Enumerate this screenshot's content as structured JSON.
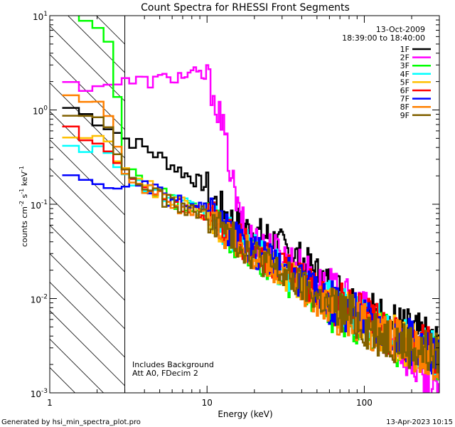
{
  "chart_data": {
    "type": "line",
    "title": "Count Spectra for RHESSI Front Segments",
    "xlabel": "Energy (keV)",
    "ylabel_parts": {
      "base": "counts cm",
      "exp1": "-2",
      "mid1": " s",
      "exp2": "-1",
      "mid2": " keV",
      "exp3": "-1"
    },
    "xscale": "log",
    "yscale": "log",
    "xlim": [
      1,
      300
    ],
    "ylim": [
      0.001,
      10
    ],
    "x_ticks": [
      {
        "value": 1,
        "label": "1"
      },
      {
        "value": 10,
        "label": "10"
      },
      {
        "value": 100,
        "label": "100"
      }
    ],
    "y_ticks": [
      {
        "value": 0.001,
        "base": "10",
        "exp": "-3"
      },
      {
        "value": 0.01,
        "base": "10",
        "exp": "-2"
      },
      {
        "value": 0.1,
        "base": "10",
        "exp": "-1"
      },
      {
        "value": 1,
        "base": "10",
        "exp": "0"
      },
      {
        "value": 10,
        "base": "10",
        "exp": "1"
      }
    ],
    "date": "13-Oct-2009",
    "time_range": "18:39:00 to 18:40:00",
    "excluded_region_max_keV": 3,
    "notes": [
      "Includes Background",
      "Att A0, FDecim 2"
    ],
    "legend_position": "top-right",
    "series": [
      {
        "name": "1F",
        "color": "#000000",
        "points": [
          [
            1.2,
            1.2
          ],
          [
            1.5,
            0.95
          ],
          [
            2,
            0.8
          ],
          [
            2.5,
            0.65
          ],
          [
            3,
            0.5
          ],
          [
            3.5,
            0.45
          ],
          [
            4,
            0.4
          ],
          [
            5,
            0.32
          ],
          [
            6,
            0.26
          ],
          [
            7,
            0.22
          ],
          [
            8,
            0.19
          ],
          [
            9,
            0.17
          ],
          [
            10,
            0.15
          ],
          [
            11,
            0.11
          ],
          [
            12,
            0.095
          ],
          [
            13,
            0.085
          ],
          [
            14,
            0.07
          ],
          [
            16,
            0.062
          ],
          [
            18,
            0.055
          ],
          [
            20,
            0.05
          ],
          [
            25,
            0.045
          ],
          [
            30,
            0.036
          ],
          [
            40,
            0.026
          ],
          [
            50,
            0.019
          ],
          [
            60,
            0.014
          ],
          [
            80,
            0.0095
          ],
          [
            100,
            0.0075
          ],
          [
            130,
            0.0062
          ],
          [
            160,
            0.0052
          ],
          [
            200,
            0.0043
          ],
          [
            250,
            0.0036
          ],
          [
            300,
            0.0031
          ]
        ]
      },
      {
        "name": "2F",
        "color": "#ff00ff",
        "points": [
          [
            1.2,
            1.8
          ],
          [
            1.5,
            1.85
          ],
          [
            2,
            1.9
          ],
          [
            2.5,
            1.92
          ],
          [
            3,
            1.95
          ],
          [
            3.5,
            2.0
          ],
          [
            4,
            2.0
          ],
          [
            5,
            2.1
          ],
          [
            6,
            2.2
          ],
          [
            7,
            2.3
          ],
          [
            8,
            2.4
          ],
          [
            9,
            2.35
          ],
          [
            10,
            2.2
          ],
          [
            11,
            1.5
          ],
          [
            12,
            0.9
          ],
          [
            13,
            0.5
          ],
          [
            14,
            0.25
          ],
          [
            15,
            0.13
          ],
          [
            16,
            0.075
          ],
          [
            18,
            0.05
          ],
          [
            20,
            0.042
          ],
          [
            25,
            0.036
          ],
          [
            30,
            0.03
          ],
          [
            40,
            0.022
          ],
          [
            50,
            0.016
          ],
          [
            60,
            0.012
          ],
          [
            80,
            0.009
          ],
          [
            100,
            0.007
          ],
          [
            130,
            0.005
          ],
          [
            160,
            0.0035
          ],
          [
            200,
            0.0022
          ],
          [
            250,
            0.0013
          ],
          [
            300,
            0.0009
          ]
        ]
      },
      {
        "name": "3F",
        "color": "#00ff00",
        "points": [
          [
            1.2,
            9.5
          ],
          [
            1.5,
            9.5
          ],
          [
            2,
            7.5
          ],
          [
            2.5,
            4.5
          ],
          [
            3,
            0.28
          ],
          [
            3.5,
            0.2
          ],
          [
            4,
            0.16
          ],
          [
            5,
            0.13
          ],
          [
            6,
            0.11
          ],
          [
            7,
            0.1
          ],
          [
            8,
            0.09
          ],
          [
            9,
            0.085
          ],
          [
            10,
            0.08
          ],
          [
            12,
            0.06
          ],
          [
            14,
            0.045
          ],
          [
            16,
            0.035
          ],
          [
            20,
            0.028
          ],
          [
            25,
            0.022
          ],
          [
            30,
            0.017
          ],
          [
            40,
            0.013
          ],
          [
            50,
            0.01
          ],
          [
            60,
            0.008
          ],
          [
            80,
            0.0065
          ],
          [
            100,
            0.005
          ],
          [
            130,
            0.004
          ],
          [
            160,
            0.0034
          ],
          [
            200,
            0.003
          ],
          [
            250,
            0.0026
          ],
          [
            300,
            0.0022
          ]
        ]
      },
      {
        "name": "4F",
        "color": "#00ffff",
        "points": [
          [
            1.2,
            0.5
          ],
          [
            1.5,
            0.45
          ],
          [
            2,
            0.38
          ],
          [
            2.5,
            0.3
          ],
          [
            3,
            0.22
          ],
          [
            3.5,
            0.18
          ],
          [
            4,
            0.15
          ],
          [
            5,
            0.13
          ],
          [
            6,
            0.11
          ],
          [
            7,
            0.1
          ],
          [
            8,
            0.09
          ],
          [
            9,
            0.085
          ],
          [
            10,
            0.08
          ],
          [
            12,
            0.06
          ],
          [
            14,
            0.048
          ],
          [
            16,
            0.04
          ],
          [
            20,
            0.032
          ],
          [
            25,
            0.025
          ],
          [
            30,
            0.02
          ],
          [
            40,
            0.015
          ],
          [
            50,
            0.012
          ],
          [
            60,
            0.0095
          ],
          [
            80,
            0.0075
          ],
          [
            100,
            0.006
          ],
          [
            130,
            0.0048
          ],
          [
            160,
            0.004
          ],
          [
            200,
            0.0034
          ],
          [
            250,
            0.003
          ],
          [
            300,
            0.0026
          ]
        ]
      },
      {
        "name": "5F",
        "color": "#ffc000",
        "points": [
          [
            1.2,
            0.55
          ],
          [
            1.5,
            0.52
          ],
          [
            2,
            0.45
          ],
          [
            2.5,
            0.38
          ],
          [
            3,
            0.23
          ],
          [
            3.5,
            0.19
          ],
          [
            4,
            0.16
          ],
          [
            5,
            0.13
          ],
          [
            6,
            0.11
          ],
          [
            7,
            0.1
          ],
          [
            8,
            0.092
          ],
          [
            9,
            0.085
          ],
          [
            10,
            0.08
          ],
          [
            12,
            0.06
          ],
          [
            14,
            0.045
          ],
          [
            16,
            0.038
          ],
          [
            20,
            0.03
          ],
          [
            25,
            0.024
          ],
          [
            30,
            0.019
          ],
          [
            40,
            0.014
          ],
          [
            50,
            0.011
          ],
          [
            60,
            0.0088
          ],
          [
            80,
            0.007
          ],
          [
            100,
            0.0056
          ],
          [
            130,
            0.0045
          ],
          [
            160,
            0.0038
          ],
          [
            200,
            0.0032
          ],
          [
            250,
            0.0028
          ],
          [
            300,
            0.0024
          ]
        ]
      },
      {
        "name": "6F",
        "color": "#ff0000",
        "points": [
          [
            1.2,
            0.7
          ],
          [
            1.5,
            0.6
          ],
          [
            2,
            0.5
          ],
          [
            2.5,
            0.4
          ],
          [
            3,
            0.2
          ],
          [
            3.5,
            0.17
          ],
          [
            4,
            0.14
          ],
          [
            5,
            0.12
          ],
          [
            6,
            0.1
          ],
          [
            7,
            0.095
          ],
          [
            8,
            0.09
          ],
          [
            9,
            0.085
          ],
          [
            10,
            0.08
          ],
          [
            12,
            0.062
          ],
          [
            14,
            0.05
          ],
          [
            16,
            0.042
          ],
          [
            20,
            0.033
          ],
          [
            25,
            0.026
          ],
          [
            30,
            0.021
          ],
          [
            40,
            0.016
          ],
          [
            50,
            0.012
          ],
          [
            60,
            0.0095
          ],
          [
            80,
            0.0076
          ],
          [
            100,
            0.006
          ],
          [
            130,
            0.0048
          ],
          [
            160,
            0.004
          ],
          [
            200,
            0.0034
          ],
          [
            250,
            0.003
          ],
          [
            300,
            0.0026
          ]
        ]
      },
      {
        "name": "7F",
        "color": "#0000ff",
        "points": [
          [
            1.2,
            0.18
          ],
          [
            1.5,
            0.18
          ],
          [
            2,
            0.17
          ],
          [
            2.5,
            0.16
          ],
          [
            3,
            0.17
          ],
          [
            3.5,
            0.16
          ],
          [
            4,
            0.15
          ],
          [
            5,
            0.13
          ],
          [
            6,
            0.11
          ],
          [
            7,
            0.1
          ],
          [
            8,
            0.095
          ],
          [
            9,
            0.09
          ],
          [
            10,
            0.085
          ],
          [
            12,
            0.065
          ],
          [
            14,
            0.05
          ],
          [
            16,
            0.04
          ],
          [
            20,
            0.032
          ],
          [
            25,
            0.026
          ],
          [
            30,
            0.02
          ],
          [
            40,
            0.015
          ],
          [
            50,
            0.012
          ],
          [
            60,
            0.0095
          ],
          [
            80,
            0.0075
          ],
          [
            100,
            0.006
          ],
          [
            130,
            0.0048
          ],
          [
            160,
            0.004
          ],
          [
            200,
            0.0034
          ],
          [
            250,
            0.0029
          ],
          [
            300,
            0.0025
          ]
        ]
      },
      {
        "name": "8F",
        "color": "#ff8000",
        "points": [
          [
            1.2,
            1.8
          ],
          [
            1.5,
            1.6
          ],
          [
            2,
            1.2
          ],
          [
            2.5,
            0.8
          ],
          [
            3,
            0.21
          ],
          [
            3.5,
            0.18
          ],
          [
            4,
            0.15
          ],
          [
            5,
            0.12
          ],
          [
            6,
            0.1
          ],
          [
            7,
            0.092
          ],
          [
            8,
            0.085
          ],
          [
            9,
            0.08
          ],
          [
            10,
            0.075
          ],
          [
            12,
            0.058
          ],
          [
            14,
            0.045
          ],
          [
            16,
            0.036
          ],
          [
            20,
            0.028
          ],
          [
            25,
            0.022
          ],
          [
            30,
            0.017
          ],
          [
            40,
            0.013
          ],
          [
            50,
            0.01
          ],
          [
            60,
            0.008
          ],
          [
            80,
            0.0063
          ],
          [
            100,
            0.005
          ],
          [
            130,
            0.0041
          ],
          [
            160,
            0.0035
          ],
          [
            200,
            0.003
          ],
          [
            250,
            0.0026
          ],
          [
            300,
            0.0023
          ]
        ]
      },
      {
        "name": "9F",
        "color": "#806000",
        "points": [
          [
            1.2,
            1.0
          ],
          [
            1.5,
            0.9
          ],
          [
            2,
            0.75
          ],
          [
            2.5,
            0.6
          ],
          [
            3,
            0.21
          ],
          [
            3.5,
            0.18
          ],
          [
            4,
            0.15
          ],
          [
            5,
            0.12
          ],
          [
            6,
            0.1
          ],
          [
            7,
            0.093
          ],
          [
            8,
            0.087
          ],
          [
            9,
            0.082
          ],
          [
            10,
            0.078
          ],
          [
            12,
            0.06
          ],
          [
            14,
            0.046
          ],
          [
            16,
            0.038
          ],
          [
            20,
            0.03
          ],
          [
            25,
            0.023
          ],
          [
            30,
            0.018
          ],
          [
            40,
            0.0135
          ],
          [
            50,
            0.0105
          ],
          [
            60,
            0.0083
          ],
          [
            80,
            0.0066
          ],
          [
            100,
            0.0052
          ],
          [
            130,
            0.0042
          ],
          [
            160,
            0.0036
          ],
          [
            200,
            0.0031
          ],
          [
            250,
            0.0027
          ],
          [
            300,
            0.0024
          ]
        ]
      }
    ]
  },
  "footer": {
    "generated_by": "Generated by hsi_min_spectra_plot.pro",
    "timestamp": "13-Apr-2023 10:15"
  }
}
